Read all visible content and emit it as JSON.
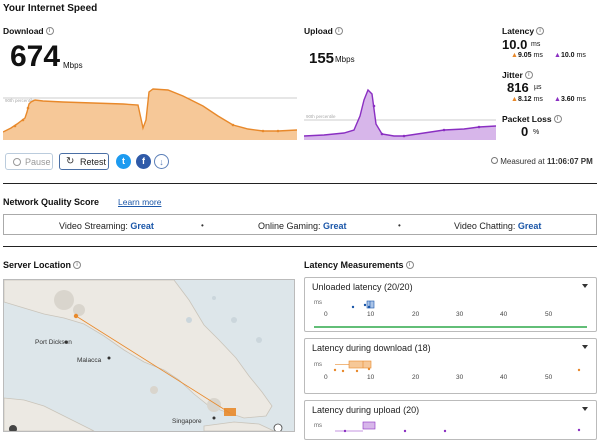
{
  "header": {
    "title": "Your Internet Speed"
  },
  "download": {
    "label": "Download",
    "value": "674",
    "unit": "Mbps",
    "percentile_label": "90th percentile"
  },
  "upload": {
    "label": "Upload",
    "value": "155",
    "unit": "Mbps",
    "percentile_label": "90th percentile"
  },
  "latency": {
    "label": "Latency",
    "value": "10.0",
    "unit": "ms",
    "down": "9.05",
    "down_unit": "ms",
    "up": "10.0",
    "up_unit": "ms"
  },
  "jitter": {
    "label": "Jitter",
    "value": "816",
    "unit": "µs",
    "down": "8.12",
    "down_unit": "ms",
    "up": "3.60",
    "up_unit": "ms"
  },
  "packet_loss": {
    "label": "Packet Loss",
    "value": "0",
    "unit": "%"
  },
  "actions": {
    "pause": "Pause",
    "retest": "Retest",
    "measured_prefix": "Measured at",
    "measured_time": "11:06:07 PM"
  },
  "network_quality": {
    "title": "Network Quality Score",
    "learn_more": "Learn more",
    "items": [
      {
        "label": "Video Streaming:",
        "value": "Great"
      },
      {
        "label": "Online Gaming:",
        "value": "Great"
      },
      {
        "label": "Video Chatting:",
        "value": "Great"
      }
    ]
  },
  "server_location": {
    "title": "Server Location",
    "places": [
      "Port Dickson",
      "Malacca",
      "Singapore"
    ]
  },
  "latency_measurements": {
    "title": "Latency Measurements",
    "unit": "ms",
    "panels": [
      {
        "title": "Unloaded latency (20/20)",
        "ticks": [
          "0",
          "10",
          "20",
          "30",
          "40",
          "50"
        ]
      },
      {
        "title": "Latency during download (18)",
        "ticks": [
          "0",
          "10",
          "20",
          "30",
          "40",
          "50"
        ]
      },
      {
        "title": "Latency during upload (20)",
        "ticks": [
          "0",
          "10",
          "20",
          "30",
          "40",
          "50"
        ]
      }
    ]
  },
  "colors": {
    "download": "#e8892b",
    "upload": "#8a2fc2",
    "link": "#1a56a8",
    "good": "#2fa84a"
  },
  "icons": [
    "info-icon",
    "pause-icon",
    "retest-icon",
    "twitter-icon",
    "facebook-icon",
    "download-icon",
    "chevron-down-icon",
    "mapbox-logo"
  ]
}
